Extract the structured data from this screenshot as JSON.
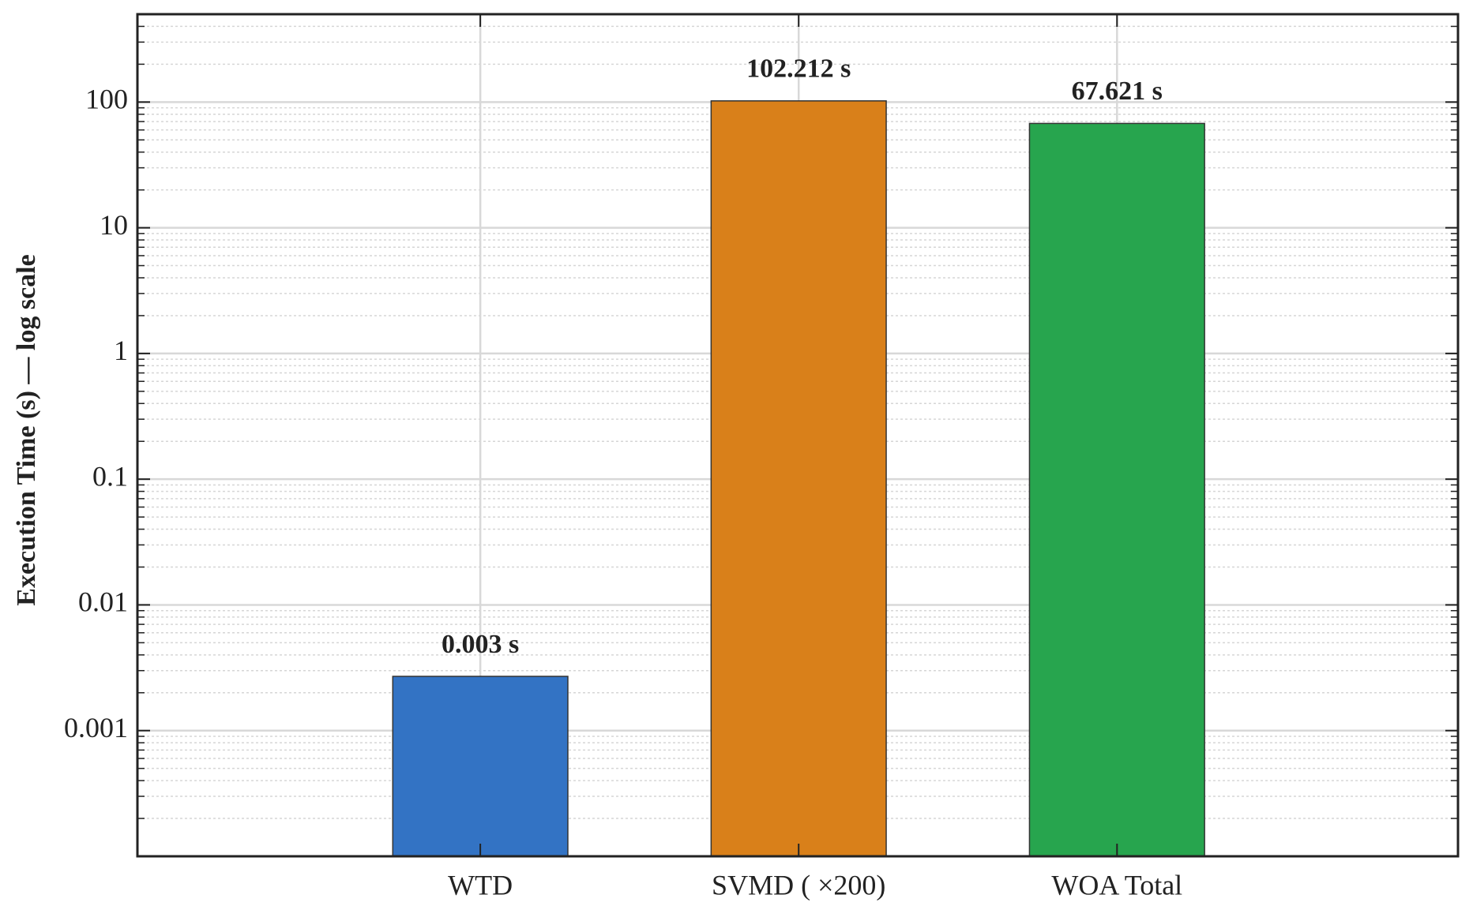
{
  "chart_data": {
    "type": "bar",
    "y_label": "Execution Time (s) — log scale",
    "categories": [
      "WTD",
      "SVMD ( ×200)",
      "WOA Total"
    ],
    "values": [
      0.0027,
      102.212,
      67.621
    ],
    "value_labels": [
      "0.003 s",
      "102.212 s",
      "67.621 s"
    ],
    "colors": [
      "#3373c4",
      "#d9801a",
      "#27a54e"
    ],
    "ylim": [
      0.0001,
      500
    ],
    "yticks": [
      0.001,
      0.01,
      0.1,
      1,
      10,
      100
    ],
    "log_y": true,
    "grid": true,
    "minor_grid": true
  }
}
